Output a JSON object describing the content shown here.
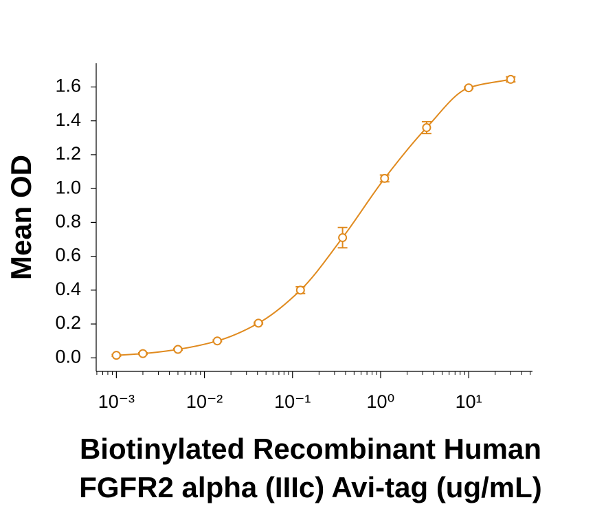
{
  "chart_data": {
    "type": "scatter",
    "ylabel": "Mean OD",
    "xlabel": [
      "Biotinylated Recombinant Human",
      "FGFR2 alpha (IIIc) Avi-tag (ug/mL)"
    ],
    "x": [
      0.001,
      0.002,
      0.005,
      0.014,
      0.041,
      0.123,
      0.37,
      1.11,
      3.33,
      10,
      30
    ],
    "values": [
      0.015,
      0.025,
      0.05,
      0.1,
      0.205,
      0.4,
      0.71,
      1.06,
      1.36,
      1.595,
      1.645
    ],
    "errors": [
      0.005,
      0.005,
      0.005,
      0.005,
      0.005,
      0.02,
      0.06,
      0.02,
      0.035,
      0.005,
      0.015
    ],
    "color": "#e08a1e",
    "xscale": "log",
    "xlim": [
      0.00059,
      53
    ],
    "xticks": [
      {
        "value": 0.001,
        "label": "10⁻³"
      },
      {
        "value": 0.01,
        "label": "10⁻²"
      },
      {
        "value": 0.1,
        "label": "10⁻¹"
      },
      {
        "value": 1,
        "label": "10⁰"
      },
      {
        "value": 10,
        "label": "10¹"
      }
    ],
    "ylim": [
      -0.08,
      1.74
    ],
    "yticks": [
      {
        "value": 0,
        "label": "0.0"
      },
      0.2,
      0.4,
      0.6,
      0.8,
      {
        "value": 1,
        "label": "1.0"
      },
      1.2,
      1.4,
      1.6
    ]
  }
}
